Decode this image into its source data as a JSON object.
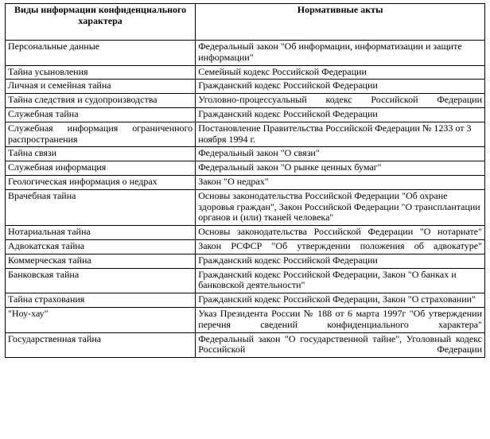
{
  "table": {
    "headers": {
      "left": "Виды информации конфиденциального характера",
      "right": "Нормативные акты"
    },
    "rows": [
      {
        "left": "Персональные данные",
        "right": "Федеральный закон \"Об информации, информатизации и защите информации\""
      },
      {
        "left": "Тайна усыновления",
        "right": "Семейный кодекс Российской Федерации"
      },
      {
        "left": "Личная и семейная тайна",
        "right": "Гражданский кодекс Российской Федерации"
      },
      {
        "left": "Тайна следствия и судопроизводства",
        "right": "Уголовно-процессуальный кодекс Российской Федерации",
        "rightJustify": true
      },
      {
        "left": "Служебная тайна",
        "right": "Гражданский кодекс Российской Федерации"
      },
      {
        "left": "Служебная информация ограниченного распространения",
        "leftJustify": true,
        "right": "Постановление Правительства Российской Федерации № 1233 от 3 ноября 1994 г."
      },
      {
        "left": "Тайна связи",
        "right": "Федеральный закон \"О связи\""
      },
      {
        "left": "Служебная информация",
        "right": "Федеральный закон \"О рынке ценных бумаг\""
      },
      {
        "left": "Геологическая информация о недрах",
        "right": "Закон \"О недрах\""
      },
      {
        "left": "Врачебная тайна",
        "right": "Основы законодательства Российской Федерации \"Об охране здоровья граждан\", Закон Российской Федерации \"О трансплантации органов и (или) тканей человека\""
      },
      {
        "left": "Нотариальная тайна",
        "right": "Основы законодательства Российской Федерации \"О нотариате\"",
        "rightJustify": true
      },
      {
        "left": "Адвокатская тайна",
        "right": "Закон РСФСР \"Об утверждении положения об адвокатуре\"",
        "rightJustify": true
      },
      {
        "left": "Коммерческая тайна",
        "right": "Гражданский кодекс Российской Федерации"
      },
      {
        "left": "Банковская тайна",
        "right": "Гражданский кодекс Российской Федерации, Закон \"О банках и банковской деятельности\""
      },
      {
        "left": "Тайна страхования",
        "right": "Гражданский кодекс Российской Федерации, Закон \"О страховании\""
      },
      {
        "left": "\"Ноу-хау\"",
        "right": "Указ Президента России № 188 от 6 марта 1997г \"Об утверждении перечня сведений конфиденциального характера\"",
        "rightJustify": true
      },
      {
        "left": "Государственная тайна",
        "right": "Федеральный закон \"О государственной тайне\", Уголовный кодекс Российской Федерации",
        "rightJustify": true
      }
    ]
  }
}
